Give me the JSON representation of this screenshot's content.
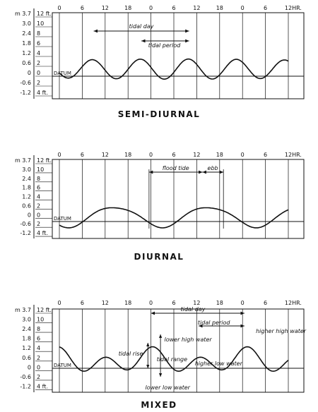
{
  "panels": [
    {
      "id": "semi",
      "title": "SEMI-DIURNAL",
      "hour_ticks": [
        "0",
        "6",
        "12",
        "18",
        "0",
        "6",
        "12",
        "18",
        "0",
        "6",
        "12"
      ],
      "hour_unit": "HR.",
      "meter_labels": [
        "m 3.7",
        "3.0",
        "2.4",
        "1.8",
        "1.2",
        "0.6",
        "0",
        "-0.6",
        "-1.2"
      ],
      "feet_labels": [
        "12 ft.",
        "10",
        "8",
        "6",
        "4",
        "2",
        "0",
        "2",
        "4 ft."
      ],
      "datum_label": "DATUM",
      "annotations": [
        {
          "key": "tidal_day",
          "text": "tidal day"
        },
        {
          "key": "tidal_period",
          "text": "tidal period"
        }
      ]
    },
    {
      "id": "diurnal",
      "title": "DIURNAL",
      "hour_ticks": [
        "0",
        "6",
        "12",
        "18",
        "0",
        "6",
        "12",
        "18",
        "0",
        "6",
        "12"
      ],
      "hour_unit": "HR.",
      "meter_labels": [
        "m 3.7",
        "3.0",
        "2.4",
        "1.8",
        "1.2",
        "0.6",
        "0",
        "-0.6",
        "-1.2"
      ],
      "feet_labels": [
        "12 ft.",
        "10",
        "8",
        "6",
        "4",
        "2",
        "0",
        "2",
        "4 ft."
      ],
      "datum_label": "DATUM",
      "annotations": [
        {
          "key": "flood_tide",
          "text": "flood tide"
        },
        {
          "key": "ebb",
          "text": "ebb"
        }
      ]
    },
    {
      "id": "mixed",
      "title": "MIXED",
      "hour_ticks": [
        "0",
        "6",
        "12",
        "18",
        "0",
        "6",
        "12",
        "18",
        "0",
        "6",
        "12"
      ],
      "hour_unit": "HR.",
      "meter_labels": [
        "m 3.7",
        "3.0",
        "2.4",
        "1.8",
        "1.2",
        "0.6",
        "0",
        "-0.6",
        "-1.2"
      ],
      "feet_labels": [
        "12 ft.",
        "10",
        "8",
        "6",
        "4",
        "2",
        "0",
        "2",
        "4 ft."
      ],
      "datum_label": "DATUM",
      "annotations": [
        {
          "key": "tidal_day",
          "text": "tidal day"
        },
        {
          "key": "tidal_period",
          "text": "tidal period"
        },
        {
          "key": "higher_high_water",
          "text": "higher high water"
        },
        {
          "key": "lower_high_water",
          "text": "lower high water"
        },
        {
          "key": "tidal_range",
          "text": "tidal range"
        },
        {
          "key": "tidal_rise",
          "text": "tidal rise"
        },
        {
          "key": "higher_low_water",
          "text": "higher low water"
        },
        {
          "key": "lower_low_water",
          "text": "lower low water"
        }
      ]
    }
  ]
}
